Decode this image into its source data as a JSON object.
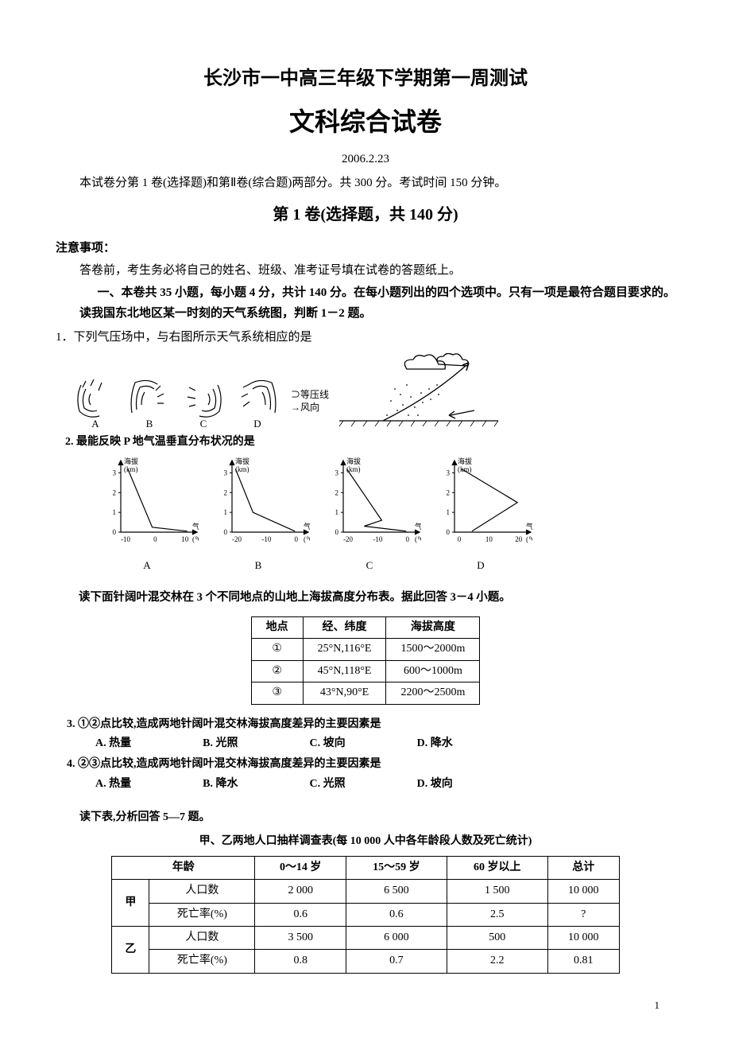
{
  "title_line1": "长沙市一中高三年级下学期第一周测试",
  "title_line2": "文科综合试卷",
  "date": "2006.2.23",
  "intro": "本试卷分第 1 卷(选择题)和第Ⅱ卷(综合题)两部分。共 300 分。考试时间 150 分钟。",
  "section1": "第 1 卷(选择题，共 140 分)",
  "notice_head": "注意事项：",
  "notice_1": "答卷前，考生务必将自己的姓名、班级、准考证号填在试卷的答题纸上。",
  "notice_2": "一、本卷共 35 小题，每小题 4 分，共计 140 分。在每小题列出的四个选项中。只有一项是最符合题目要求的。",
  "notice_3": "读我国东北地区某一时刻的天气系统图，判断 1－2 题。",
  "q1": "1．下列气压场中，与右图所示天气系统相应的是",
  "pressure_options": {
    "labels": [
      "A",
      "B",
      "C",
      "D"
    ],
    "legend_line1": "⊃等压线",
    "legend_line2": "→风向"
  },
  "q2_title": "2. 最能反映 P 地气温垂直分布状况的是",
  "charts": {
    "type": "line",
    "count": 4,
    "labels": [
      "A",
      "B",
      "C",
      "D"
    ],
    "y_label": "海拔",
    "y_unit": "(km)",
    "x_label": "气温",
    "x_unit": "(℃)",
    "y_ticks": [
      0,
      1,
      2,
      3
    ],
    "axis_color": "#000000",
    "line_color": "#000000",
    "bg": "#ffffff",
    "variants": [
      {
        "x_ticks": [
          "-10",
          "0",
          "10"
        ],
        "points": [
          [
            0.1,
            3.2
          ],
          [
            0.45,
            0.25
          ],
          [
            0.95,
            0.05
          ]
        ]
      },
      {
        "x_ticks": [
          "-20",
          "-10",
          "0"
        ],
        "points": [
          [
            0.05,
            3.2
          ],
          [
            0.3,
            1.0
          ],
          [
            0.9,
            0.05
          ]
        ]
      },
      {
        "x_ticks": [
          "-20",
          "-10",
          "0"
        ],
        "points": [
          [
            0.05,
            3.2
          ],
          [
            0.55,
            0.6
          ],
          [
            0.3,
            0.3
          ],
          [
            0.9,
            0.05
          ]
        ]
      },
      {
        "x_ticks": [
          "0",
          "10",
          "20"
        ],
        "points": [
          [
            0.1,
            3.2
          ],
          [
            0.9,
            1.5
          ],
          [
            0.25,
            0.05
          ]
        ]
      }
    ]
  },
  "mixed_forest_intro": "读下面针阔叶混交林在 3 个不同地点的山地上海拔高度分布表。据此回答 3－4 小题。",
  "table1": {
    "headers": [
      "地点",
      "经、纬度",
      "海拔高度"
    ],
    "rows": [
      [
        "①",
        "25°N,116°E",
        "1500～2000m"
      ],
      [
        "②",
        "45°N,118°E",
        "600～1000m"
      ],
      [
        "③",
        "43°N,90°E",
        "2200～2500m"
      ]
    ]
  },
  "q3": "3. ①②点比较,造成两地针阔叶混交林海拔高度差异的主要因素是",
  "q3_opts": {
    "A": "A. 热量",
    "B": "B. 光照",
    "C": "C. 坡向",
    "D": "D. 降水"
  },
  "q4": "4. ②③点比较,造成两地针阔叶混交林海拔高度差异的主要因素是",
  "q4_opts": {
    "A": "A. 热量",
    "B": "B. 降水",
    "C": "C. 光照",
    "D": "D. 坡向"
  },
  "read_table": "读下表,分析回答 5—7 题。",
  "table2_caption": "甲、乙两地人口抽样调查表(每 10 000 人中各年龄段人数及死亡统计)",
  "table2": {
    "col_headers": [
      "年龄",
      "0～14 岁",
      "15～59 岁",
      "60 岁以上",
      "总计"
    ],
    "groups": [
      {
        "label": "甲",
        "rows": [
          {
            "metric": "人口数",
            "vals": [
              "2 000",
              "6 500",
              "1 500",
              "10 000"
            ]
          },
          {
            "metric": "死亡率(%)",
            "vals": [
              "0.6",
              "0.6",
              "2.5",
              "?"
            ]
          }
        ]
      },
      {
        "label": "乙",
        "rows": [
          {
            "metric": "人口数",
            "vals": [
              "3 500",
              "6 000",
              "500",
              "10 000"
            ]
          },
          {
            "metric": "死亡率(%)",
            "vals": [
              "0.8",
              "0.7",
              "2.2",
              "0.81"
            ]
          }
        ]
      }
    ]
  },
  "page_number": "1"
}
